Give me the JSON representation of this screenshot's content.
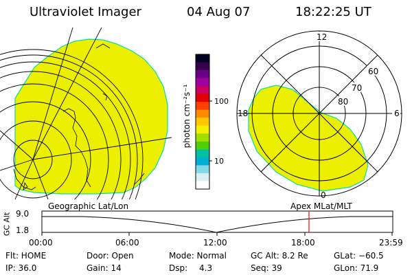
{
  "header": {
    "instrument": "Ultraviolet Imager",
    "date": "04 Aug 07",
    "time": "18:22:25 UT"
  },
  "colorbar": {
    "unit_label": "photon cm⁻²s⁻¹",
    "tick_100": "100",
    "tick_10": "10",
    "colors": [
      "#000020",
      "#3a0050",
      "#6a0088",
      "#a000a0",
      "#cc0060",
      "#e00000",
      "#ff4000",
      "#ff8c00",
      "#ffc800",
      "#f0f000",
      "#a0e000",
      "#50d000",
      "#00c0a0",
      "#00b0d0",
      "#80d8e8",
      "#d8f0f4",
      "#ffffff"
    ]
  },
  "geo_map": {
    "caption": "Geographic Lat/Lon",
    "aurora_color": "#ecf000"
  },
  "polar_plot": {
    "caption": "Apex MLat/MLT",
    "mlt_top": "12",
    "mlt_left": "18",
    "mlt_right": "6",
    "mlt_bottom": "0",
    "lat_60": "60",
    "lat_70": "70",
    "lat_80": "80"
  },
  "altitude_plot": {
    "axis_label": "GC Alt",
    "y_value": "9.0",
    "y_value_low": "1.8",
    "x_ticks": [
      "00:00",
      "06:00",
      "12:00",
      "18:00",
      "23:59"
    ],
    "marker_color": "#ff0000"
  },
  "status": {
    "flt": "Flt: HOME",
    "ip": "IP: 36.0",
    "door": "Door: Open",
    "gain": "Gain: 14",
    "mode": "Mode: Normal",
    "dsp_label": "Dsp:",
    "dsp_value": "4.3",
    "gc_alt": "GC Alt: 8.2 Re",
    "seq": "Seq: 39",
    "glat": "GLat: −60.5",
    "glon": "GLon: 71.9"
  }
}
